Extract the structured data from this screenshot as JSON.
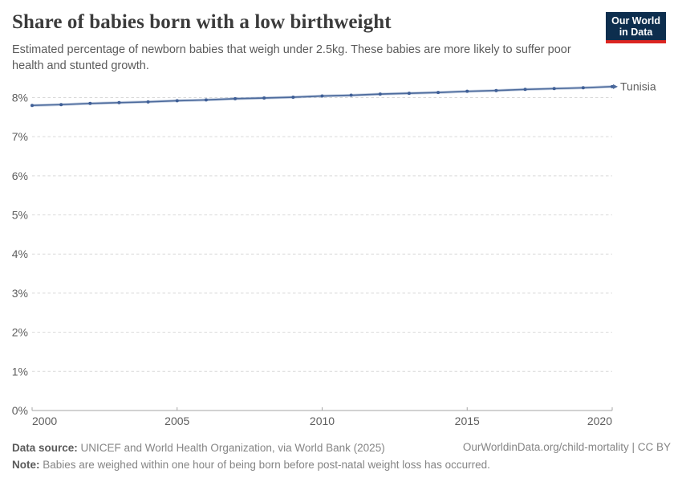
{
  "header": {
    "logo": {
      "line1": "Our World",
      "line2": "in Data"
    }
  },
  "chart_data": {
    "type": "line",
    "title": "Share of babies born with a low birthweight",
    "subtitle": "Estimated percentage of newborn babies that weigh under 2.5kg. These babies are more likely to suffer poor health and stunted growth.",
    "x": [
      2000,
      2001,
      2002,
      2003,
      2004,
      2005,
      2006,
      2007,
      2008,
      2009,
      2010,
      2011,
      2012,
      2013,
      2014,
      2015,
      2016,
      2017,
      2018,
      2019,
      2020
    ],
    "series": [
      {
        "name": "Tunisia",
        "color": "#4c6a9c",
        "values": [
          7.8,
          7.82,
          7.85,
          7.87,
          7.89,
          7.92,
          7.94,
          7.97,
          7.99,
          8.01,
          8.04,
          8.06,
          8.09,
          8.11,
          8.13,
          8.16,
          8.18,
          8.21,
          8.23,
          8.25,
          8.28
        ]
      }
    ],
    "xlabel": "",
    "ylabel": "",
    "xlim": [
      2000,
      2020
    ],
    "ylim": [
      0,
      8.4
    ],
    "x_ticks": [
      {
        "value": 2000,
        "label": "2000"
      },
      {
        "value": 2005,
        "label": "2005"
      },
      {
        "value": 2010,
        "label": "2010"
      },
      {
        "value": 2015,
        "label": "2015"
      },
      {
        "value": 2020,
        "label": "2020"
      }
    ],
    "y_ticks": [
      {
        "value": 0,
        "label": "0%"
      },
      {
        "value": 1,
        "label": "1%"
      },
      {
        "value": 2,
        "label": "2%"
      },
      {
        "value": 3,
        "label": "3%"
      },
      {
        "value": 4,
        "label": "4%"
      },
      {
        "value": 5,
        "label": "5%"
      },
      {
        "value": 6,
        "label": "6%"
      },
      {
        "value": 7,
        "label": "7%"
      },
      {
        "value": 8,
        "label": "8%"
      }
    ],
    "grid": true,
    "legend": "line-end-label"
  },
  "footer": {
    "data_source_label": "Data source:",
    "data_source_text": " UNICEF and World Health Organization, via World Bank (2025)",
    "note_label": "Note:",
    "note_text": " Babies are weighed within one hour of being born before post-natal weight loss has occurred.",
    "attribution": "OurWorldinData.org/child-mortality | CC BY"
  },
  "colors": {
    "accent": "#4c6a9c",
    "line_halo": "rgba(110,140,185,0.38)",
    "point": "#3f5f97",
    "logo_bg": "#0d2e4e",
    "logo_red": "#dc2621",
    "grid": "#d9d9d9",
    "axis": "#a6a6a6",
    "text_muted": "#5e5e5e"
  }
}
